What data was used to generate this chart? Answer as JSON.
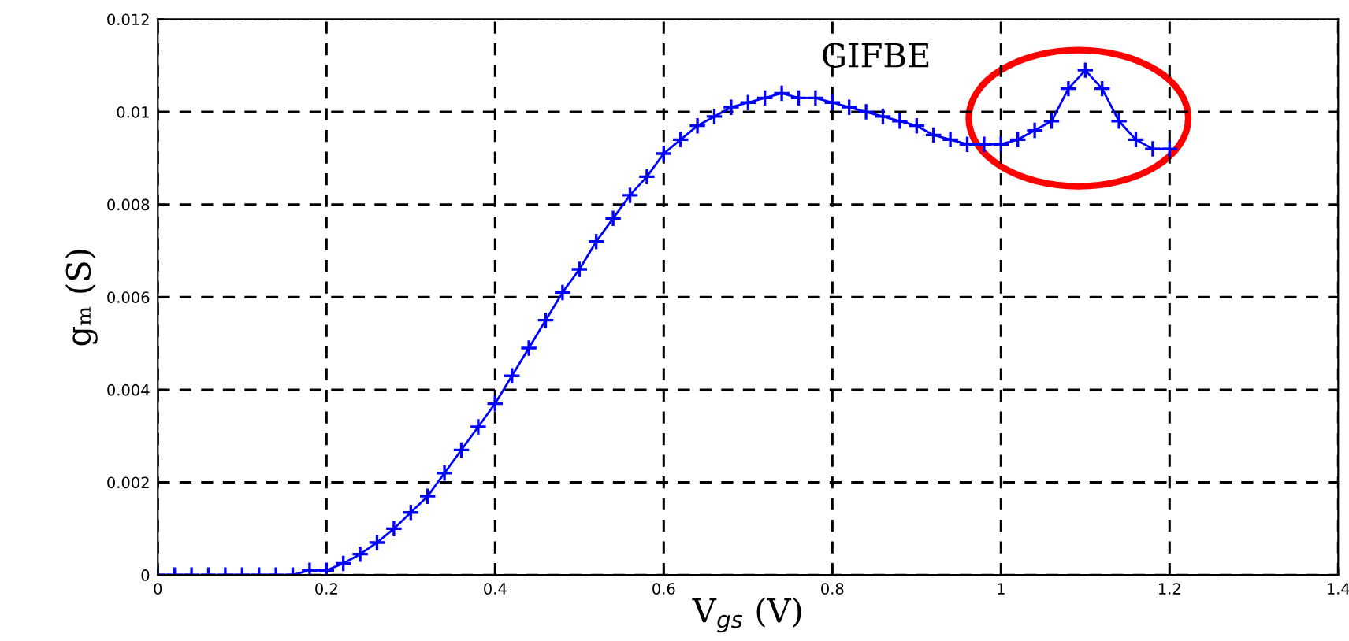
{
  "chart_data": {
    "type": "line",
    "xlabel": "V$_{gs}$ (V)",
    "ylabel": "gₘ (S)",
    "annotations": [
      "GIFBE"
    ],
    "x": [
      0,
      0.02,
      0.04,
      0.06,
      0.08,
      0.1,
      0.12,
      0.14,
      0.16,
      0.18,
      0.2,
      0.22,
      0.24,
      0.26,
      0.28,
      0.3,
      0.32,
      0.34,
      0.36,
      0.38,
      0.4,
      0.42,
      0.44,
      0.46,
      0.48,
      0.5,
      0.52,
      0.54,
      0.56,
      0.58,
      0.6,
      0.62,
      0.64,
      0.66,
      0.68,
      0.7,
      0.72,
      0.74,
      0.76,
      0.78,
      0.8,
      0.82,
      0.84,
      0.86,
      0.88,
      0.9,
      0.92,
      0.94,
      0.96,
      0.98,
      1.0,
      1.02,
      1.04,
      1.06,
      1.08,
      1.1,
      1.12,
      1.14,
      1.16,
      1.18,
      1.2
    ],
    "series": [
      {
        "color": "#0000ff",
        "values": [
          0,
          0,
          0,
          0,
          0,
          0,
          0,
          0,
          0,
          0.0001,
          0.0001,
          0.00025,
          0.00045,
          0.0007,
          0.001,
          0.00135,
          0.0017,
          0.0022,
          0.0027,
          0.0032,
          0.0037,
          0.0043,
          0.0049,
          0.0055,
          0.0061,
          0.0066,
          0.0072,
          0.0077,
          0.0082,
          0.0086,
          0.0091,
          0.0094,
          0.0097,
          0.0099,
          0.0101,
          0.0102,
          0.0103,
          0.0104,
          0.0103,
          0.0103,
          0.0102,
          0.0101,
          0.01,
          0.0099,
          0.0098,
          0.0097,
          0.0095,
          0.0094,
          0.0093,
          0.0093,
          0.0093,
          0.0094,
          0.0096,
          0.0098,
          0.0105,
          0.0109,
          0.0105,
          0.0098,
          0.0094,
          0.0092,
          0.0092
        ]
      }
    ],
    "xlim": [
      0,
      1.4
    ],
    "xticks": [
      0,
      0.2,
      0.4,
      0.6,
      0.8,
      1,
      1.2,
      1.4
    ],
    "ylim": [
      0,
      0.012
    ],
    "yticks": [
      0,
      0.002,
      0.004,
      0.006,
      0.008,
      0.01,
      0.012
    ],
    "grid": true,
    "marker": "cross",
    "line_style": "solid"
  }
}
